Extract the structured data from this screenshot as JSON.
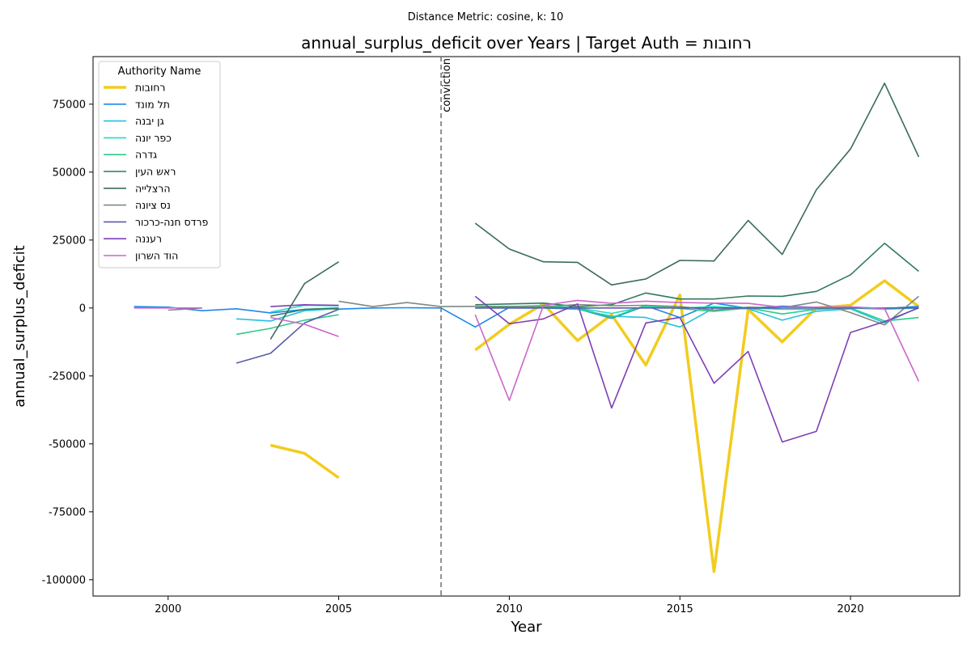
{
  "figure": {
    "suptitle": "Distance Metric: cosine, k: 10"
  },
  "chart_data": {
    "type": "line",
    "title": "annual_surplus_deficit over Years | Target Auth = רחובות",
    "xlabel": "Year",
    "ylabel": "annual_surplus_deficit",
    "xlim": [
      1997.8,
      2023.2
    ],
    "ylim": [
      -106000,
      92500
    ],
    "xticks": [
      2000,
      2005,
      2010,
      2015,
      2020
    ],
    "yticks": [
      -100000,
      -75000,
      -50000,
      -25000,
      0,
      25000,
      50000,
      75000
    ],
    "grid": false,
    "legend": {
      "title": "Authority Name",
      "placement": "top-left"
    },
    "annotations": [
      {
        "type": "vline",
        "x": 2008,
        "label": "conviction",
        "color": "#777777"
      }
    ],
    "series": [
      {
        "name": "רחובות",
        "color": "#f2cc1f",
        "highlight": true,
        "points": [
          [
            2003,
            -50500
          ],
          [
            2004,
            -53500
          ],
          [
            2005,
            -62500
          ],
          [
            2009,
            -15500
          ],
          [
            2010,
            -6000
          ],
          [
            2011,
            1500
          ],
          [
            2012,
            -12000
          ],
          [
            2013,
            -2500
          ],
          [
            2014,
            -21000
          ],
          [
            2015,
            4800
          ],
          [
            2016,
            -97000
          ],
          [
            2017,
            -500
          ],
          [
            2018,
            -12500
          ],
          [
            2019,
            0
          ],
          [
            2020,
            1000
          ],
          [
            2021,
            10000
          ],
          [
            2022,
            500
          ]
        ]
      },
      {
        "name": "תל מונד",
        "color": "#1f88e5",
        "points": [
          [
            1999,
            500
          ],
          [
            2000,
            300
          ],
          [
            2001,
            -1000
          ],
          [
            2002,
            -300
          ],
          [
            2003,
            -1800
          ],
          [
            2004,
            -500
          ],
          [
            2005,
            -400
          ],
          [
            2006,
            0
          ],
          [
            2007,
            100
          ],
          [
            2008,
            0
          ],
          [
            2009,
            -7000
          ],
          [
            2010,
            200
          ],
          [
            2011,
            500
          ],
          [
            2012,
            -300
          ],
          [
            2013,
            -3800
          ],
          [
            2014,
            800
          ],
          [
            2015,
            -3500
          ],
          [
            2016,
            1800
          ],
          [
            2017,
            -100
          ],
          [
            2018,
            700
          ],
          [
            2019,
            200
          ],
          [
            2020,
            400
          ],
          [
            2021,
            -200
          ],
          [
            2022,
            600
          ]
        ]
      },
      {
        "name": "גן יבנה",
        "color": "#22c1e0",
        "points": [
          [
            2002,
            -4000
          ],
          [
            2003,
            -4800
          ],
          [
            2004,
            -1000
          ],
          [
            2005,
            -200
          ],
          [
            2009,
            0
          ],
          [
            2010,
            0
          ],
          [
            2011,
            0
          ],
          [
            2012,
            -500
          ],
          [
            2013,
            -3000
          ],
          [
            2014,
            -3500
          ],
          [
            2015,
            -7000
          ],
          [
            2016,
            0
          ],
          [
            2017,
            -300
          ],
          [
            2018,
            -4500
          ],
          [
            2019,
            -1200
          ],
          [
            2020,
            -300
          ],
          [
            2021,
            -5500
          ],
          [
            2022,
            200
          ]
        ]
      },
      {
        "name": "כפר יונה",
        "color": "#22ddc4",
        "points": [
          [
            2003,
            -1500
          ],
          [
            2004,
            1000
          ],
          [
            2005,
            800
          ],
          [
            2009,
            0
          ],
          [
            2010,
            500
          ],
          [
            2011,
            1000
          ],
          [
            2012,
            0
          ],
          [
            2013,
            -2000
          ],
          [
            2014,
            500
          ],
          [
            2015,
            0
          ],
          [
            2016,
            500
          ],
          [
            2017,
            0
          ],
          [
            2018,
            -500
          ],
          [
            2019,
            -500
          ],
          [
            2020,
            0
          ],
          [
            2021,
            -500
          ],
          [
            2022,
            0
          ]
        ]
      },
      {
        "name": "גדרה",
        "color": "#2ecc8a",
        "points": [
          [
            2002,
            -9700
          ],
          [
            2003,
            -7500
          ],
          [
            2004,
            -4500
          ],
          [
            2005,
            -2500
          ],
          [
            2009,
            0
          ],
          [
            2010,
            500
          ],
          [
            2011,
            500
          ],
          [
            2012,
            0
          ],
          [
            2013,
            -3500
          ],
          [
            2014,
            1000
          ],
          [
            2015,
            -200
          ],
          [
            2016,
            -1200
          ],
          [
            2017,
            0
          ],
          [
            2018,
            -2200
          ],
          [
            2019,
            -500
          ],
          [
            2020,
            0
          ],
          [
            2021,
            -4800
          ],
          [
            2022,
            -3500
          ]
        ]
      },
      {
        "name": "ראש העין",
        "color": "#2f7a5f",
        "points": [
          [
            2003,
            -3000
          ],
          [
            2004,
            -500
          ],
          [
            2005,
            0
          ],
          [
            2009,
            1200
          ],
          [
            2010,
            1500
          ],
          [
            2011,
            1800
          ],
          [
            2012,
            500
          ],
          [
            2013,
            1200
          ],
          [
            2014,
            5500
          ],
          [
            2015,
            3300
          ],
          [
            2016,
            3300
          ],
          [
            2017,
            4400
          ],
          [
            2018,
            4300
          ],
          [
            2019,
            6100
          ],
          [
            2020,
            12200
          ],
          [
            2021,
            23800
          ],
          [
            2022,
            13500
          ]
        ]
      },
      {
        "name": "הרצלייה",
        "color": "#3b6b5e",
        "points": [
          [
            2003,
            -11500
          ],
          [
            2004,
            9000
          ],
          [
            2005,
            17000
          ],
          [
            2009,
            31200
          ],
          [
            2010,
            21700
          ],
          [
            2011,
            17000
          ],
          [
            2012,
            16800
          ],
          [
            2013,
            8500
          ],
          [
            2014,
            10700
          ],
          [
            2015,
            17500
          ],
          [
            2016,
            17300
          ],
          [
            2017,
            32200
          ],
          [
            2018,
            19700
          ],
          [
            2019,
            43500
          ],
          [
            2020,
            58500
          ],
          [
            2021,
            82700
          ],
          [
            2022,
            55600
          ]
        ]
      },
      {
        "name": "נס ציונה",
        "color": "#7d8a86",
        "points": [
          [
            2000,
            -800
          ],
          [
            2001,
            0
          ],
          [
            2005,
            2500
          ],
          [
            2006,
            500
          ],
          [
            2007,
            2000
          ],
          [
            2008,
            500
          ],
          [
            2009,
            600
          ],
          [
            2010,
            600
          ],
          [
            2011,
            400
          ],
          [
            2012,
            1300
          ],
          [
            2013,
            800
          ],
          [
            2014,
            1000
          ],
          [
            2015,
            500
          ],
          [
            2016,
            -800
          ],
          [
            2017,
            300
          ],
          [
            2018,
            100
          ],
          [
            2019,
            2200
          ],
          [
            2020,
            -1700
          ],
          [
            2021,
            -6200
          ],
          [
            2022,
            4300
          ]
        ]
      },
      {
        "name": "פרדס חנה-כרכור",
        "color": "#5a5aaa",
        "points": [
          [
            1999,
            500
          ],
          [
            2002,
            -20300
          ],
          [
            2003,
            -16700
          ],
          [
            2004,
            -5500
          ],
          [
            2005,
            -500
          ],
          [
            2009,
            0
          ],
          [
            2010,
            0
          ],
          [
            2011,
            0
          ],
          [
            2012,
            0
          ],
          [
            2013,
            0
          ],
          [
            2014,
            0
          ],
          [
            2015,
            0
          ],
          [
            2016,
            0
          ],
          [
            2017,
            0
          ],
          [
            2018,
            0
          ],
          [
            2019,
            0
          ],
          [
            2020,
            0
          ],
          [
            2021,
            0
          ],
          [
            2022,
            0
          ]
        ]
      },
      {
        "name": "רעננה",
        "color": "#7e3fb5",
        "points": [
          [
            2003,
            500
          ],
          [
            2004,
            1200
          ],
          [
            2005,
            1000
          ],
          [
            2009,
            4300
          ],
          [
            2010,
            -5800
          ],
          [
            2011,
            -4000
          ],
          [
            2012,
            1500
          ],
          [
            2013,
            -36800
          ],
          [
            2014,
            -5500
          ],
          [
            2015,
            -3500
          ],
          [
            2016,
            -27700
          ],
          [
            2017,
            -16000
          ],
          [
            2018,
            -49300
          ],
          [
            2019,
            -45400
          ],
          [
            2020,
            -9000
          ],
          [
            2021,
            -5000
          ],
          [
            2022,
            0
          ]
        ]
      },
      {
        "name": "הוד השרון",
        "color": "#cc66cc",
        "points": [
          [
            1999,
            0
          ],
          [
            2000,
            0
          ],
          [
            2001,
            0
          ],
          [
            2003,
            -3500
          ],
          [
            2004,
            -6000
          ],
          [
            2005,
            -10500
          ],
          [
            2009,
            -2500
          ],
          [
            2010,
            -34000
          ],
          [
            2011,
            1000
          ],
          [
            2012,
            2800
          ],
          [
            2013,
            1700
          ],
          [
            2014,
            2500
          ],
          [
            2015,
            2000
          ],
          [
            2016,
            1800
          ],
          [
            2017,
            1700
          ],
          [
            2018,
            200
          ],
          [
            2019,
            300
          ],
          [
            2020,
            400
          ],
          [
            2021,
            -200
          ],
          [
            2022,
            -27000
          ]
        ]
      }
    ]
  }
}
